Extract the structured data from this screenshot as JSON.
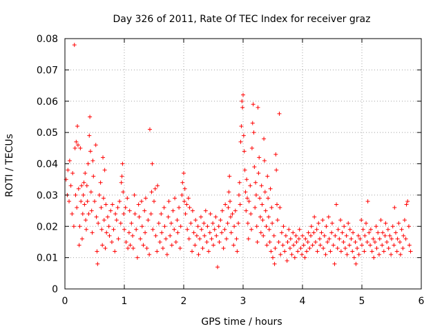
{
  "chart_data": {
    "type": "scatter",
    "title": "Day 326 of 2011, Rate Of TEC Index for receiver graz",
    "xlabel": "GPS time / hours",
    "ylabel": "ROTI / TECUs",
    "xlim": [
      0,
      6
    ],
    "ylim": [
      0,
      0.08
    ],
    "x_ticks": [
      0,
      1,
      2,
      3,
      4,
      5,
      6
    ],
    "y_ticks": [
      0,
      0.01,
      0.02,
      0.03,
      0.04,
      0.05,
      0.06,
      0.07,
      0.08
    ],
    "x_tick_labels": [
      "0",
      "1",
      "2",
      "3",
      "4",
      "5",
      "6"
    ],
    "y_tick_labels": [
      "0",
      "0.01",
      "0.02",
      "0.03",
      "0.04",
      "0.05",
      "0.06",
      "0.07",
      "0.08"
    ],
    "grid": true,
    "marker": "plus",
    "color": "#ff0000",
    "points": [
      [
        0.02,
        0.035
      ],
      [
        0.04,
        0.03
      ],
      [
        0.05,
        0.038
      ],
      [
        0.07,
        0.028
      ],
      [
        0.08,
        0.041
      ],
      [
        0.1,
        0.033
      ],
      [
        0.12,
        0.024
      ],
      [
        0.13,
        0.037
      ],
      [
        0.15,
        0.02
      ],
      [
        0.16,
        0.078
      ],
      [
        0.17,
        0.045
      ],
      [
        0.18,
        0.03
      ],
      [
        0.19,
        0.047
      ],
      [
        0.2,
        0.026
      ],
      [
        0.21,
        0.052
      ],
      [
        0.22,
        0.046
      ],
      [
        0.23,
        0.032
      ],
      [
        0.24,
        0.014
      ],
      [
        0.25,
        0.02
      ],
      [
        0.26,
        0.045
      ],
      [
        0.27,
        0.028
      ],
      [
        0.28,
        0.033
      ],
      [
        0.29,
        0.016
      ],
      [
        0.3,
        0.024
      ],
      [
        0.31,
        0.03
      ],
      [
        0.32,
        0.034
      ],
      [
        0.33,
        0.027
      ],
      [
        0.34,
        0.037
      ],
      [
        0.35,
        0.022
      ],
      [
        0.36,
        0.019
      ],
      [
        0.37,
        0.033
      ],
      [
        0.38,
        0.028
      ],
      [
        0.39,
        0.04
      ],
      [
        0.4,
        0.024
      ],
      [
        0.41,
        0.049
      ],
      [
        0.42,
        0.055
      ],
      [
        0.43,
        0.044
      ],
      [
        0.44,
        0.031
      ],
      [
        0.45,
        0.025
      ],
      [
        0.46,
        0.018
      ],
      [
        0.47,
        0.041
      ],
      [
        0.48,
        0.036
      ],
      [
        0.5,
        0.028
      ],
      [
        0.52,
        0.046
      ],
      [
        0.53,
        0.023
      ],
      [
        0.54,
        0.012
      ],
      [
        0.55,
        0.008
      ],
      [
        0.56,
        0.021
      ],
      [
        0.58,
        0.03
      ],
      [
        0.6,
        0.034
      ],
      [
        0.61,
        0.026
      ],
      [
        0.62,
        0.019
      ],
      [
        0.63,
        0.014
      ],
      [
        0.64,
        0.042
      ],
      [
        0.65,
        0.029
      ],
      [
        0.66,
        0.022
      ],
      [
        0.67,
        0.038
      ],
      [
        0.68,
        0.013
      ],
      [
        0.69,
        0.027
      ],
      [
        0.7,
        0.018
      ],
      [
        0.72,
        0.023
      ],
      [
        0.74,
        0.02
      ],
      [
        0.75,
        0.017
      ],
      [
        0.77,
        0.025
      ],
      [
        0.79,
        0.015
      ],
      [
        0.8,
        0.027
      ],
      [
        0.82,
        0.019
      ],
      [
        0.84,
        0.012
      ],
      [
        0.85,
        0.024
      ],
      [
        0.87,
        0.022
      ],
      [
        0.89,
        0.026
      ],
      [
        0.9,
        0.016
      ],
      [
        0.92,
        0.028
      ],
      [
        0.94,
        0.021
      ],
      [
        0.95,
        0.034
      ],
      [
        0.96,
        0.036
      ],
      [
        0.97,
        0.04
      ],
      [
        0.98,
        0.031
      ],
      [
        0.99,
        0.024
      ],
      [
        1.0,
        0.019
      ],
      [
        1.02,
        0.026
      ],
      [
        1.03,
        0.015
      ],
      [
        1.05,
        0.029
      ],
      [
        1.06,
        0.013
      ],
      [
        1.08,
        0.018
      ],
      [
        1.09,
        0.025
      ],
      [
        1.1,
        0.014
      ],
      [
        1.12,
        0.021
      ],
      [
        1.14,
        0.017
      ],
      [
        1.15,
        0.013
      ],
      [
        1.17,
        0.03
      ],
      [
        1.18,
        0.024
      ],
      [
        1.2,
        0.019
      ],
      [
        1.22,
        0.01
      ],
      [
        1.24,
        0.027
      ],
      [
        1.25,
        0.023
      ],
      [
        1.27,
        0.016
      ],
      [
        1.29,
        0.028
      ],
      [
        1.3,
        0.02
      ],
      [
        1.32,
        0.014
      ],
      [
        1.34,
        0.025
      ],
      [
        1.35,
        0.018
      ],
      [
        1.36,
        0.029
      ],
      [
        1.38,
        0.013
      ],
      [
        1.4,
        0.022
      ],
      [
        1.42,
        0.011
      ],
      [
        1.43,
        0.051
      ],
      [
        1.45,
        0.024
      ],
      [
        1.46,
        0.031
      ],
      [
        1.47,
        0.04
      ],
      [
        1.48,
        0.019
      ],
      [
        1.5,
        0.028
      ],
      [
        1.52,
        0.032
      ],
      [
        1.53,
        0.017
      ],
      [
        1.55,
        0.012
      ],
      [
        1.56,
        0.033
      ],
      [
        1.58,
        0.021
      ],
      [
        1.6,
        0.015
      ],
      [
        1.62,
        0.024
      ],
      [
        1.63,
        0.018
      ],
      [
        1.65,
        0.013
      ],
      [
        1.67,
        0.026
      ],
      [
        1.68,
        0.02
      ],
      [
        1.7,
        0.016
      ],
      [
        1.72,
        0.011
      ],
      [
        1.74,
        0.023
      ],
      [
        1.75,
        0.028
      ],
      [
        1.77,
        0.017
      ],
      [
        1.79,
        0.021
      ],
      [
        1.8,
        0.014
      ],
      [
        1.82,
        0.025
      ],
      [
        1.84,
        0.019
      ],
      [
        1.85,
        0.029
      ],
      [
        1.87,
        0.015
      ],
      [
        1.89,
        0.022
      ],
      [
        1.9,
        0.018
      ],
      [
        1.92,
        0.026
      ],
      [
        1.94,
        0.013
      ],
      [
        1.95,
        0.02
      ],
      [
        1.97,
        0.03
      ],
      [
        1.98,
        0.034
      ],
      [
        2.0,
        0.037
      ],
      [
        2.01,
        0.028
      ],
      [
        2.02,
        0.032
      ],
      [
        2.03,
        0.024
      ],
      [
        2.05,
        0.027
      ],
      [
        2.06,
        0.019
      ],
      [
        2.08,
        0.029
      ],
      [
        2.09,
        0.016
      ],
      [
        2.1,
        0.026
      ],
      [
        2.12,
        0.021
      ],
      [
        2.14,
        0.012
      ],
      [
        2.15,
        0.025
      ],
      [
        2.17,
        0.018
      ],
      [
        2.19,
        0.014
      ],
      [
        2.2,
        0.022
      ],
      [
        2.22,
        0.017
      ],
      [
        2.24,
        0.02
      ],
      [
        2.25,
        0.011
      ],
      [
        2.27,
        0.016
      ],
      [
        2.29,
        0.023
      ],
      [
        2.3,
        0.019
      ],
      [
        2.32,
        0.013
      ],
      [
        2.34,
        0.021
      ],
      [
        2.35,
        0.017
      ],
      [
        2.37,
        0.025
      ],
      [
        2.39,
        0.015
      ],
      [
        2.4,
        0.02
      ],
      [
        2.42,
        0.012
      ],
      [
        2.44,
        0.018
      ],
      [
        2.45,
        0.024
      ],
      [
        2.47,
        0.016
      ],
      [
        2.49,
        0.021
      ],
      [
        2.5,
        0.014
      ],
      [
        2.52,
        0.019
      ],
      [
        2.54,
        0.023
      ],
      [
        2.55,
        0.017
      ],
      [
        2.57,
        0.007
      ],
      [
        2.59,
        0.02
      ],
      [
        2.6,
        0.015
      ],
      [
        2.62,
        0.022
      ],
      [
        2.64,
        0.018
      ],
      [
        2.65,
        0.025
      ],
      [
        2.67,
        0.013
      ],
      [
        2.69,
        0.019
      ],
      [
        2.7,
        0.027
      ],
      [
        2.72,
        0.016
      ],
      [
        2.74,
        0.021
      ],
      [
        2.75,
        0.026
      ],
      [
        2.76,
        0.031
      ],
      [
        2.77,
        0.036
      ],
      [
        2.78,
        0.028
      ],
      [
        2.79,
        0.023
      ],
      [
        2.8,
        0.018
      ],
      [
        2.82,
        0.024
      ],
      [
        2.84,
        0.014
      ],
      [
        2.85,
        0.02
      ],
      [
        2.87,
        0.025
      ],
      [
        2.89,
        0.016
      ],
      [
        2.9,
        0.012
      ],
      [
        2.92,
        0.021
      ],
      [
        2.93,
        0.03
      ],
      [
        2.94,
        0.034
      ],
      [
        2.95,
        0.027
      ],
      [
        2.96,
        0.047
      ],
      [
        2.97,
        0.052
      ],
      [
        2.98,
        0.06
      ],
      [
        2.99,
        0.058
      ],
      [
        3.0,
        0.062
      ],
      [
        3.01,
        0.049
      ],
      [
        3.02,
        0.044
      ],
      [
        3.03,
        0.038
      ],
      [
        3.04,
        0.031
      ],
      [
        3.05,
        0.025
      ],
      [
        3.06,
        0.035
      ],
      [
        3.07,
        0.029
      ],
      [
        3.08,
        0.021
      ],
      [
        3.09,
        0.016
      ],
      [
        3.1,
        0.028
      ],
      [
        3.12,
        0.033
      ],
      [
        3.13,
        0.024
      ],
      [
        3.14,
        0.019
      ],
      [
        3.15,
        0.045
      ],
      [
        3.16,
        0.053
      ],
      [
        3.17,
        0.059
      ],
      [
        3.18,
        0.05
      ],
      [
        3.19,
        0.039
      ],
      [
        3.2,
        0.026
      ],
      [
        3.21,
        0.034
      ],
      [
        3.22,
        0.03
      ],
      [
        3.23,
        0.02
      ],
      [
        3.24,
        0.015
      ],
      [
        3.25,
        0.058
      ],
      [
        3.26,
        0.037
      ],
      [
        3.27,
        0.042
      ],
      [
        3.28,
        0.029
      ],
      [
        3.29,
        0.023
      ],
      [
        3.3,
        0.018
      ],
      [
        3.31,
        0.033
      ],
      [
        3.32,
        0.027
      ],
      [
        3.33,
        0.022
      ],
      [
        3.34,
        0.017
      ],
      [
        3.35,
        0.048
      ],
      [
        3.36,
        0.041
      ],
      [
        3.37,
        0.031
      ],
      [
        3.38,
        0.025
      ],
      [
        3.39,
        0.02
      ],
      [
        3.4,
        0.014
      ],
      [
        3.41,
        0.036
      ],
      [
        3.42,
        0.029
      ],
      [
        3.43,
        0.023
      ],
      [
        3.44,
        0.019
      ],
      [
        3.45,
        0.015
      ],
      [
        3.46,
        0.032
      ],
      [
        3.47,
        0.012
      ],
      [
        3.48,
        0.026
      ],
      [
        3.49,
        0.021
      ],
      [
        3.5,
        0.01
      ],
      [
        3.52,
        0.017
      ],
      [
        3.53,
        0.008
      ],
      [
        3.54,
        0.013
      ],
      [
        3.55,
        0.043
      ],
      [
        3.56,
        0.038
      ],
      [
        3.57,
        0.027
      ],
      [
        3.58,
        0.022
      ],
      [
        3.6,
        0.015
      ],
      [
        3.61,
        0.056
      ],
      [
        3.62,
        0.026
      ],
      [
        3.63,
        0.011
      ],
      [
        3.65,
        0.018
      ],
      [
        3.67,
        0.014
      ],
      [
        3.68,
        0.02
      ],
      [
        3.7,
        0.012
      ],
      [
        3.72,
        0.017
      ],
      [
        3.74,
        0.009
      ],
      [
        3.75,
        0.015
      ],
      [
        3.77,
        0.019
      ],
      [
        3.79,
        0.013
      ],
      [
        3.8,
        0.016
      ],
      [
        3.82,
        0.011
      ],
      [
        3.84,
        0.018
      ],
      [
        3.85,
        0.014
      ],
      [
        3.87,
        0.01
      ],
      [
        3.89,
        0.017
      ],
      [
        3.9,
        0.015
      ],
      [
        3.92,
        0.012
      ],
      [
        3.94,
        0.016
      ],
      [
        3.95,
        0.019
      ],
      [
        3.97,
        0.013
      ],
      [
        3.99,
        0.011
      ],
      [
        4.0,
        0.017
      ],
      [
        4.02,
        0.014
      ],
      [
        4.04,
        0.01
      ],
      [
        4.05,
        0.016
      ],
      [
        4.07,
        0.012
      ],
      [
        4.09,
        0.015
      ],
      [
        4.1,
        0.018
      ],
      [
        4.12,
        0.013
      ],
      [
        4.14,
        0.017
      ],
      [
        4.15,
        0.02
      ],
      [
        4.17,
        0.014
      ],
      [
        4.19,
        0.018
      ],
      [
        4.2,
        0.023
      ],
      [
        4.22,
        0.015
      ],
      [
        4.24,
        0.019
      ],
      [
        4.25,
        0.012
      ],
      [
        4.27,
        0.021
      ],
      [
        4.29,
        0.016
      ],
      [
        4.3,
        0.014
      ],
      [
        4.32,
        0.018
      ],
      [
        4.34,
        0.022
      ],
      [
        4.35,
        0.013
      ],
      [
        4.37,
        0.017
      ],
      [
        4.39,
        0.011
      ],
      [
        4.4,
        0.02
      ],
      [
        4.42,
        0.015
      ],
      [
        4.44,
        0.023
      ],
      [
        4.45,
        0.016
      ],
      [
        4.47,
        0.012
      ],
      [
        4.49,
        0.018
      ],
      [
        4.5,
        0.021
      ],
      [
        4.52,
        0.014
      ],
      [
        4.54,
        0.008
      ],
      [
        4.55,
        0.017
      ],
      [
        4.57,
        0.027
      ],
      [
        4.59,
        0.013
      ],
      [
        4.6,
        0.019
      ],
      [
        4.62,
        0.016
      ],
      [
        4.64,
        0.022
      ],
      [
        4.65,
        0.012
      ],
      [
        4.67,
        0.018
      ],
      [
        4.69,
        0.015
      ],
      [
        4.7,
        0.02
      ],
      [
        4.72,
        0.013
      ],
      [
        4.74,
        0.017
      ],
      [
        4.75,
        0.011
      ],
      [
        4.77,
        0.021
      ],
      [
        4.79,
        0.014
      ],
      [
        4.8,
        0.019
      ],
      [
        4.82,
        0.016
      ],
      [
        4.84,
        0.012
      ],
      [
        4.85,
        0.018
      ],
      [
        4.87,
        0.01
      ],
      [
        4.89,
        0.015
      ],
      [
        4.9,
        0.008
      ],
      [
        4.92,
        0.013
      ],
      [
        4.94,
        0.017
      ],
      [
        4.95,
        0.011
      ],
      [
        4.97,
        0.016
      ],
      [
        4.99,
        0.022
      ],
      [
        5.0,
        0.014
      ],
      [
        5.02,
        0.019
      ],
      [
        5.04,
        0.012
      ],
      [
        5.05,
        0.017
      ],
      [
        5.07,
        0.021
      ],
      [
        5.09,
        0.015
      ],
      [
        5.1,
        0.028
      ],
      [
        5.12,
        0.018
      ],
      [
        5.14,
        0.014
      ],
      [
        5.15,
        0.019
      ],
      [
        5.17,
        0.012
      ],
      [
        5.19,
        0.016
      ],
      [
        5.2,
        0.01
      ],
      [
        5.22,
        0.015
      ],
      [
        5.24,
        0.02
      ],
      [
        5.25,
        0.013
      ],
      [
        5.27,
        0.018
      ],
      [
        5.29,
        0.011
      ],
      [
        5.3,
        0.016
      ],
      [
        5.32,
        0.022
      ],
      [
        5.34,
        0.014
      ],
      [
        5.35,
        0.018
      ],
      [
        5.37,
        0.012
      ],
      [
        5.39,
        0.017
      ],
      [
        5.4,
        0.021
      ],
      [
        5.42,
        0.015
      ],
      [
        5.44,
        0.019
      ],
      [
        5.45,
        0.013
      ],
      [
        5.47,
        0.017
      ],
      [
        5.49,
        0.011
      ],
      [
        5.5,
        0.016
      ],
      [
        5.52,
        0.02
      ],
      [
        5.54,
        0.014
      ],
      [
        5.55,
        0.026
      ],
      [
        5.57,
        0.018
      ],
      [
        5.59,
        0.012
      ],
      [
        5.6,
        0.016
      ],
      [
        5.62,
        0.021
      ],
      [
        5.64,
        0.015
      ],
      [
        5.65,
        0.011
      ],
      [
        5.67,
        0.019
      ],
      [
        5.69,
        0.013
      ],
      [
        5.7,
        0.017
      ],
      [
        5.72,
        0.022
      ],
      [
        5.74,
        0.016
      ],
      [
        5.75,
        0.027
      ],
      [
        5.77,
        0.028
      ],
      [
        5.79,
        0.02
      ],
      [
        5.8,
        0.014
      ],
      [
        5.82,
        0.012
      ]
    ]
  }
}
